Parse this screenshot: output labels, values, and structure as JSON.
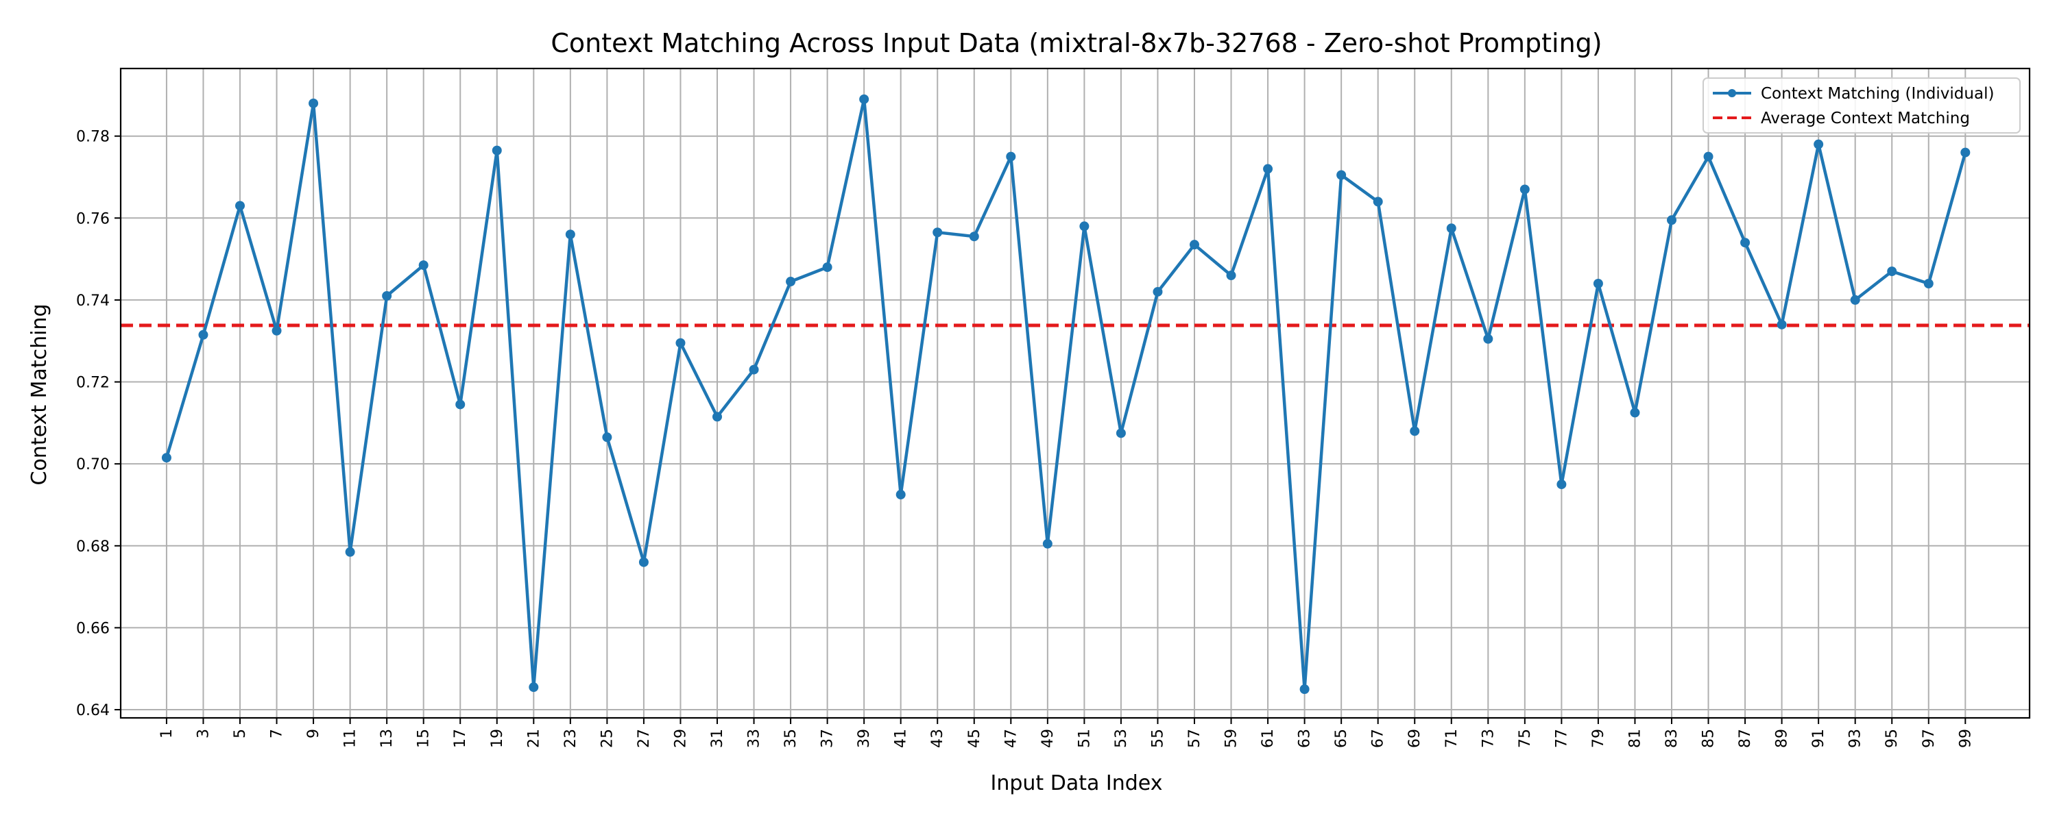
{
  "colors": {
    "series_line": "#1f77b4",
    "average_line": "#e41a1c",
    "grid": "#b0b0b0",
    "axes": "#000000",
    "legend_border": "#cccccc"
  },
  "chart_data": {
    "type": "line",
    "title": "Context Matching Across Input Data (mixtral-8x7b-32768 - Zero-shot Prompting)",
    "xlabel": "Input Data Index",
    "ylabel": "Context Matching",
    "xlim": [
      -1.5,
      102.5
    ],
    "ylim": [
      0.638,
      0.7965
    ],
    "grid": true,
    "legend_placement": "top-right",
    "x": [
      1,
      3,
      5,
      7,
      9,
      11,
      13,
      15,
      17,
      19,
      21,
      23,
      25,
      27,
      29,
      31,
      33,
      35,
      37,
      39,
      41,
      43,
      45,
      47,
      49,
      51,
      53,
      55,
      57,
      59,
      61,
      63,
      65,
      67,
      69,
      71,
      73,
      75,
      77,
      79,
      81,
      83,
      85,
      87,
      89,
      91,
      93,
      95,
      97,
      99
    ],
    "x_tick_labels": [
      "1",
      "3",
      "5",
      "7",
      "9",
      "11",
      "13",
      "15",
      "17",
      "19",
      "21",
      "23",
      "25",
      "27",
      "29",
      "31",
      "33",
      "35",
      "37",
      "39",
      "41",
      "43",
      "45",
      "47",
      "49",
      "51",
      "53",
      "55",
      "57",
      "59",
      "61",
      "63",
      "65",
      "67",
      "69",
      "71",
      "73",
      "75",
      "77",
      "79",
      "81",
      "83",
      "85",
      "87",
      "89",
      "91",
      "93",
      "95",
      "97",
      "99"
    ],
    "y_ticks": [
      0.64,
      0.66,
      0.68,
      0.7,
      0.72,
      0.74,
      0.76,
      0.78
    ],
    "y_tick_labels": [
      "0.64",
      "0.66",
      "0.68",
      "0.70",
      "0.72",
      "0.74",
      "0.76",
      "0.78"
    ],
    "series": [
      {
        "name": "Context Matching (Individual)",
        "style": "solid-with-markers",
        "values": [
          0.7015,
          0.7315,
          0.763,
          0.7325,
          0.788,
          0.6785,
          0.741,
          0.7485,
          0.7145,
          0.7765,
          0.6455,
          0.756,
          0.7065,
          0.676,
          0.7295,
          0.7115,
          0.723,
          0.7445,
          0.748,
          0.789,
          0.6925,
          0.7565,
          0.7555,
          0.775,
          0.6805,
          0.758,
          0.7075,
          0.742,
          0.7535,
          0.746,
          0.772,
          0.645,
          0.7705,
          0.764,
          0.708,
          0.7575,
          0.7305,
          0.767,
          0.695,
          0.744,
          0.7125,
          0.7595,
          0.775,
          0.754,
          0.734,
          0.778,
          0.74,
          0.747,
          0.744,
          0.776
        ]
      },
      {
        "name": "Average Context Matching",
        "style": "dashed",
        "value": 0.7338
      }
    ]
  }
}
